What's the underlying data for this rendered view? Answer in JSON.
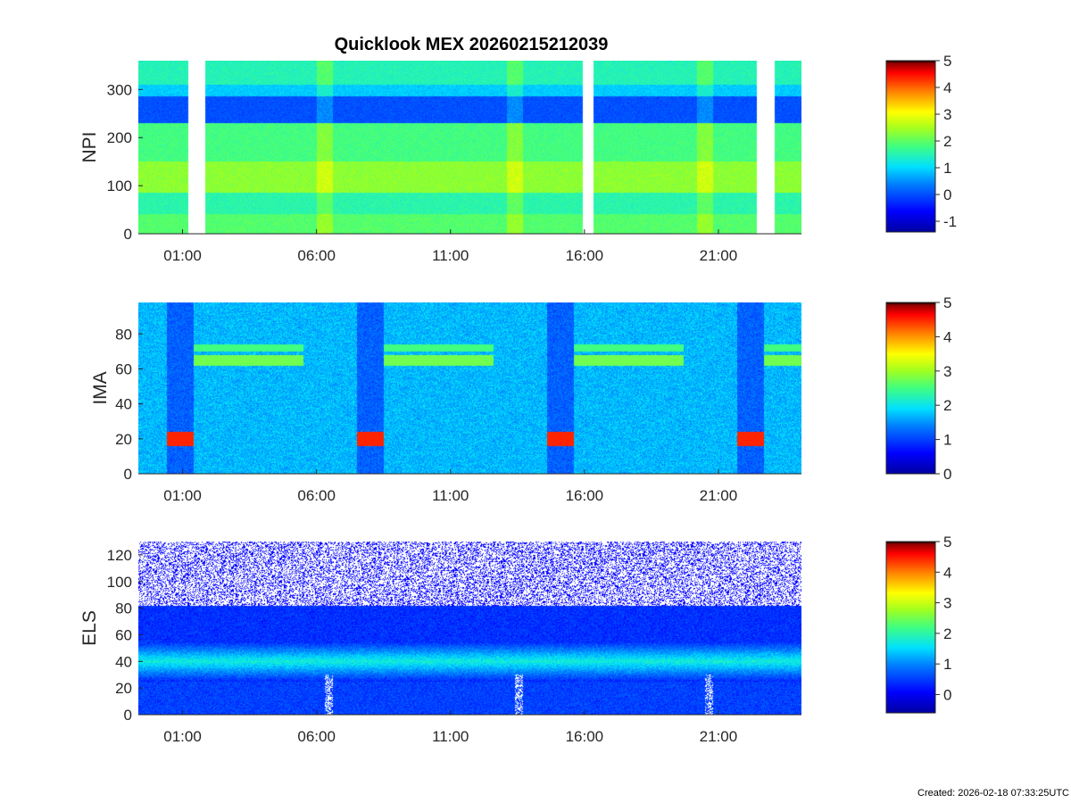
{
  "title": "Quicklook MEX 20260215212039",
  "footer": "Created: 2026-02-18 07:33:25UTC",
  "chart_data": [
    {
      "type": "heatmap",
      "name": "NPI",
      "ylabel": "NPI",
      "ylim": [
        0,
        360
      ],
      "yticks": [
        0,
        100,
        200,
        300
      ],
      "xlim_hours": [
        -0.65,
        24.1
      ],
      "xticks": [
        "01:00",
        "06:00",
        "11:00",
        "16:00",
        "21:00"
      ],
      "xtick_hours": [
        1,
        6,
        11,
        16,
        21
      ],
      "data_gaps_hours": [
        [
          1.2,
          1.85
        ],
        [
          15.95,
          16.35
        ],
        [
          22.45,
          23.1
        ]
      ],
      "colorbar": {
        "ticks": [
          "-1",
          "0",
          "1",
          "2",
          "3",
          "4",
          "5"
        ],
        "range": [
          -1.4,
          5
        ]
      }
    },
    {
      "type": "heatmap",
      "name": "IMA",
      "ylabel": "IMA",
      "ylim": [
        0,
        98
      ],
      "yticks": [
        0,
        20,
        40,
        60,
        80
      ],
      "xlim_hours": [
        -0.65,
        24.1
      ],
      "xticks": [
        "01:00",
        "06:00",
        "11:00",
        "16:00",
        "21:00"
      ],
      "xtick_hours": [
        1,
        6,
        11,
        16,
        21
      ],
      "colorbar": {
        "ticks": [
          "0",
          "1",
          "2",
          "3",
          "4",
          "5"
        ],
        "range": [
          0,
          5
        ]
      }
    },
    {
      "type": "heatmap",
      "name": "ELS",
      "ylabel": "ELS",
      "ylim": [
        0,
        130
      ],
      "yticks": [
        0,
        20,
        40,
        60,
        80,
        100,
        120
      ],
      "xlim_hours": [
        -0.65,
        24.1
      ],
      "xticks": [
        "01:00",
        "06:00",
        "11:00",
        "16:00",
        "21:00"
      ],
      "xtick_hours": [
        1,
        6,
        11,
        16,
        21
      ],
      "colorbar": {
        "ticks": [
          "0",
          "1",
          "2",
          "3",
          "4",
          "5"
        ],
        "range": [
          -0.6,
          5
        ]
      }
    }
  ]
}
